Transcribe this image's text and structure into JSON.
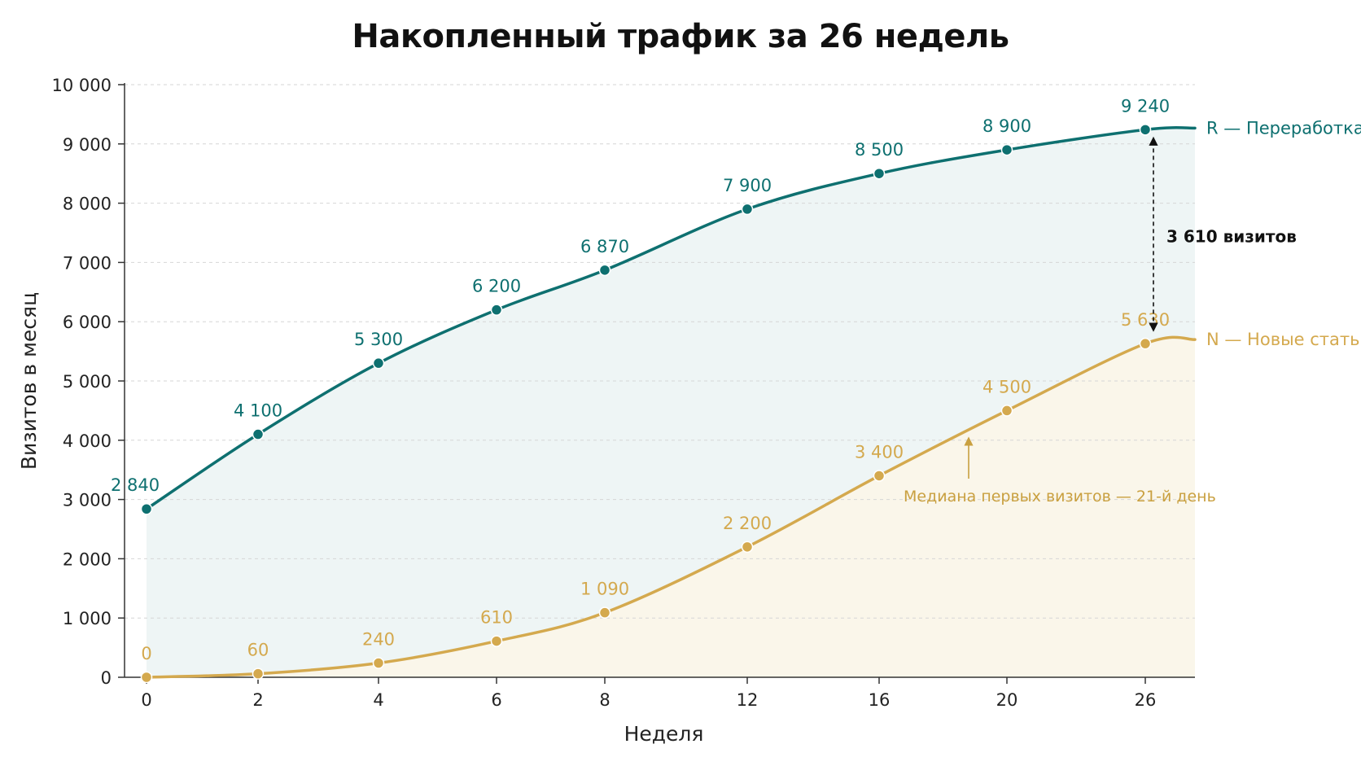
{
  "chart_data": {
    "type": "line",
    "title": "Накопленный трафик за 26 недель",
    "xlabel": "Неделя",
    "ylabel": "Визитов в месяц",
    "x": [
      0,
      2,
      4,
      6,
      8,
      12,
      16,
      20,
      26
    ],
    "x_tick_labels": [
      "0",
      "2",
      "4",
      "6",
      "8",
      "12",
      "16",
      "20",
      "26"
    ],
    "y_ticks": [
      0,
      1000,
      2000,
      3000,
      4000,
      5000,
      6000,
      7000,
      8000,
      9000,
      10000
    ],
    "y_tick_labels": [
      "0",
      "1 000",
      "2 000",
      "3 000",
      "4 000",
      "5 000",
      "6 000",
      "7 000",
      "8 000",
      "9 000",
      "10 000"
    ],
    "ylim": [
      0,
      10000
    ],
    "grid": "horizontal dashed",
    "legend": "direct labels at right end of lines",
    "series": [
      {
        "name": "R — Переработка",
        "color": "#0e7070",
        "fill": "#eef5f5",
        "values": [
          2840,
          4100,
          5300,
          6200,
          6870,
          7900,
          8500,
          8900,
          9240
        ],
        "value_labels": [
          "2 840",
          "4 100",
          "5 300",
          "6 200",
          "6 870",
          "7 900",
          "8 500",
          "8 900",
          "9 240"
        ]
      },
      {
        "name": "N — Новые статьи",
        "color": "#d4a94e",
        "fill": "#faf6ea",
        "values": [
          0,
          60,
          240,
          610,
          1090,
          2200,
          3400,
          4500,
          5630
        ],
        "value_labels": [
          "0",
          "60",
          "240",
          "610",
          "1 090",
          "2 200",
          "3 400",
          "4 500",
          "5 630"
        ]
      }
    ],
    "annotations": {
      "gap": {
        "text": "3 610 визитов",
        "x": 26,
        "from": 9240,
        "to": 5630
      },
      "note": {
        "text": "Медиана первых визитов — 21-й день",
        "color": "#c9a040"
      }
    }
  }
}
